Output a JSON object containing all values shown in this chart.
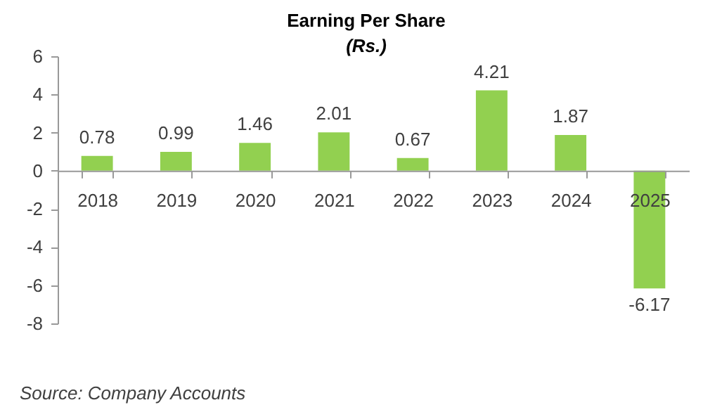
{
  "chart_data": {
    "type": "bar",
    "title": "Earning Per Share",
    "subtitle": "(Rs.)",
    "categories": [
      "2018",
      "2019",
      "2020",
      "2021",
      "2022",
      "2023",
      "2024",
      "2025"
    ],
    "values": [
      0.78,
      0.99,
      1.46,
      2.01,
      0.67,
      4.21,
      1.87,
      -6.17
    ],
    "color": "#92d050",
    "ylim": [
      -8,
      6
    ],
    "yticks": [
      -8,
      -6,
      -4,
      -2,
      0,
      2,
      4,
      6
    ],
    "data_labels": true,
    "grid": false,
    "annotations": [
      "Source: Company Accounts"
    ]
  }
}
